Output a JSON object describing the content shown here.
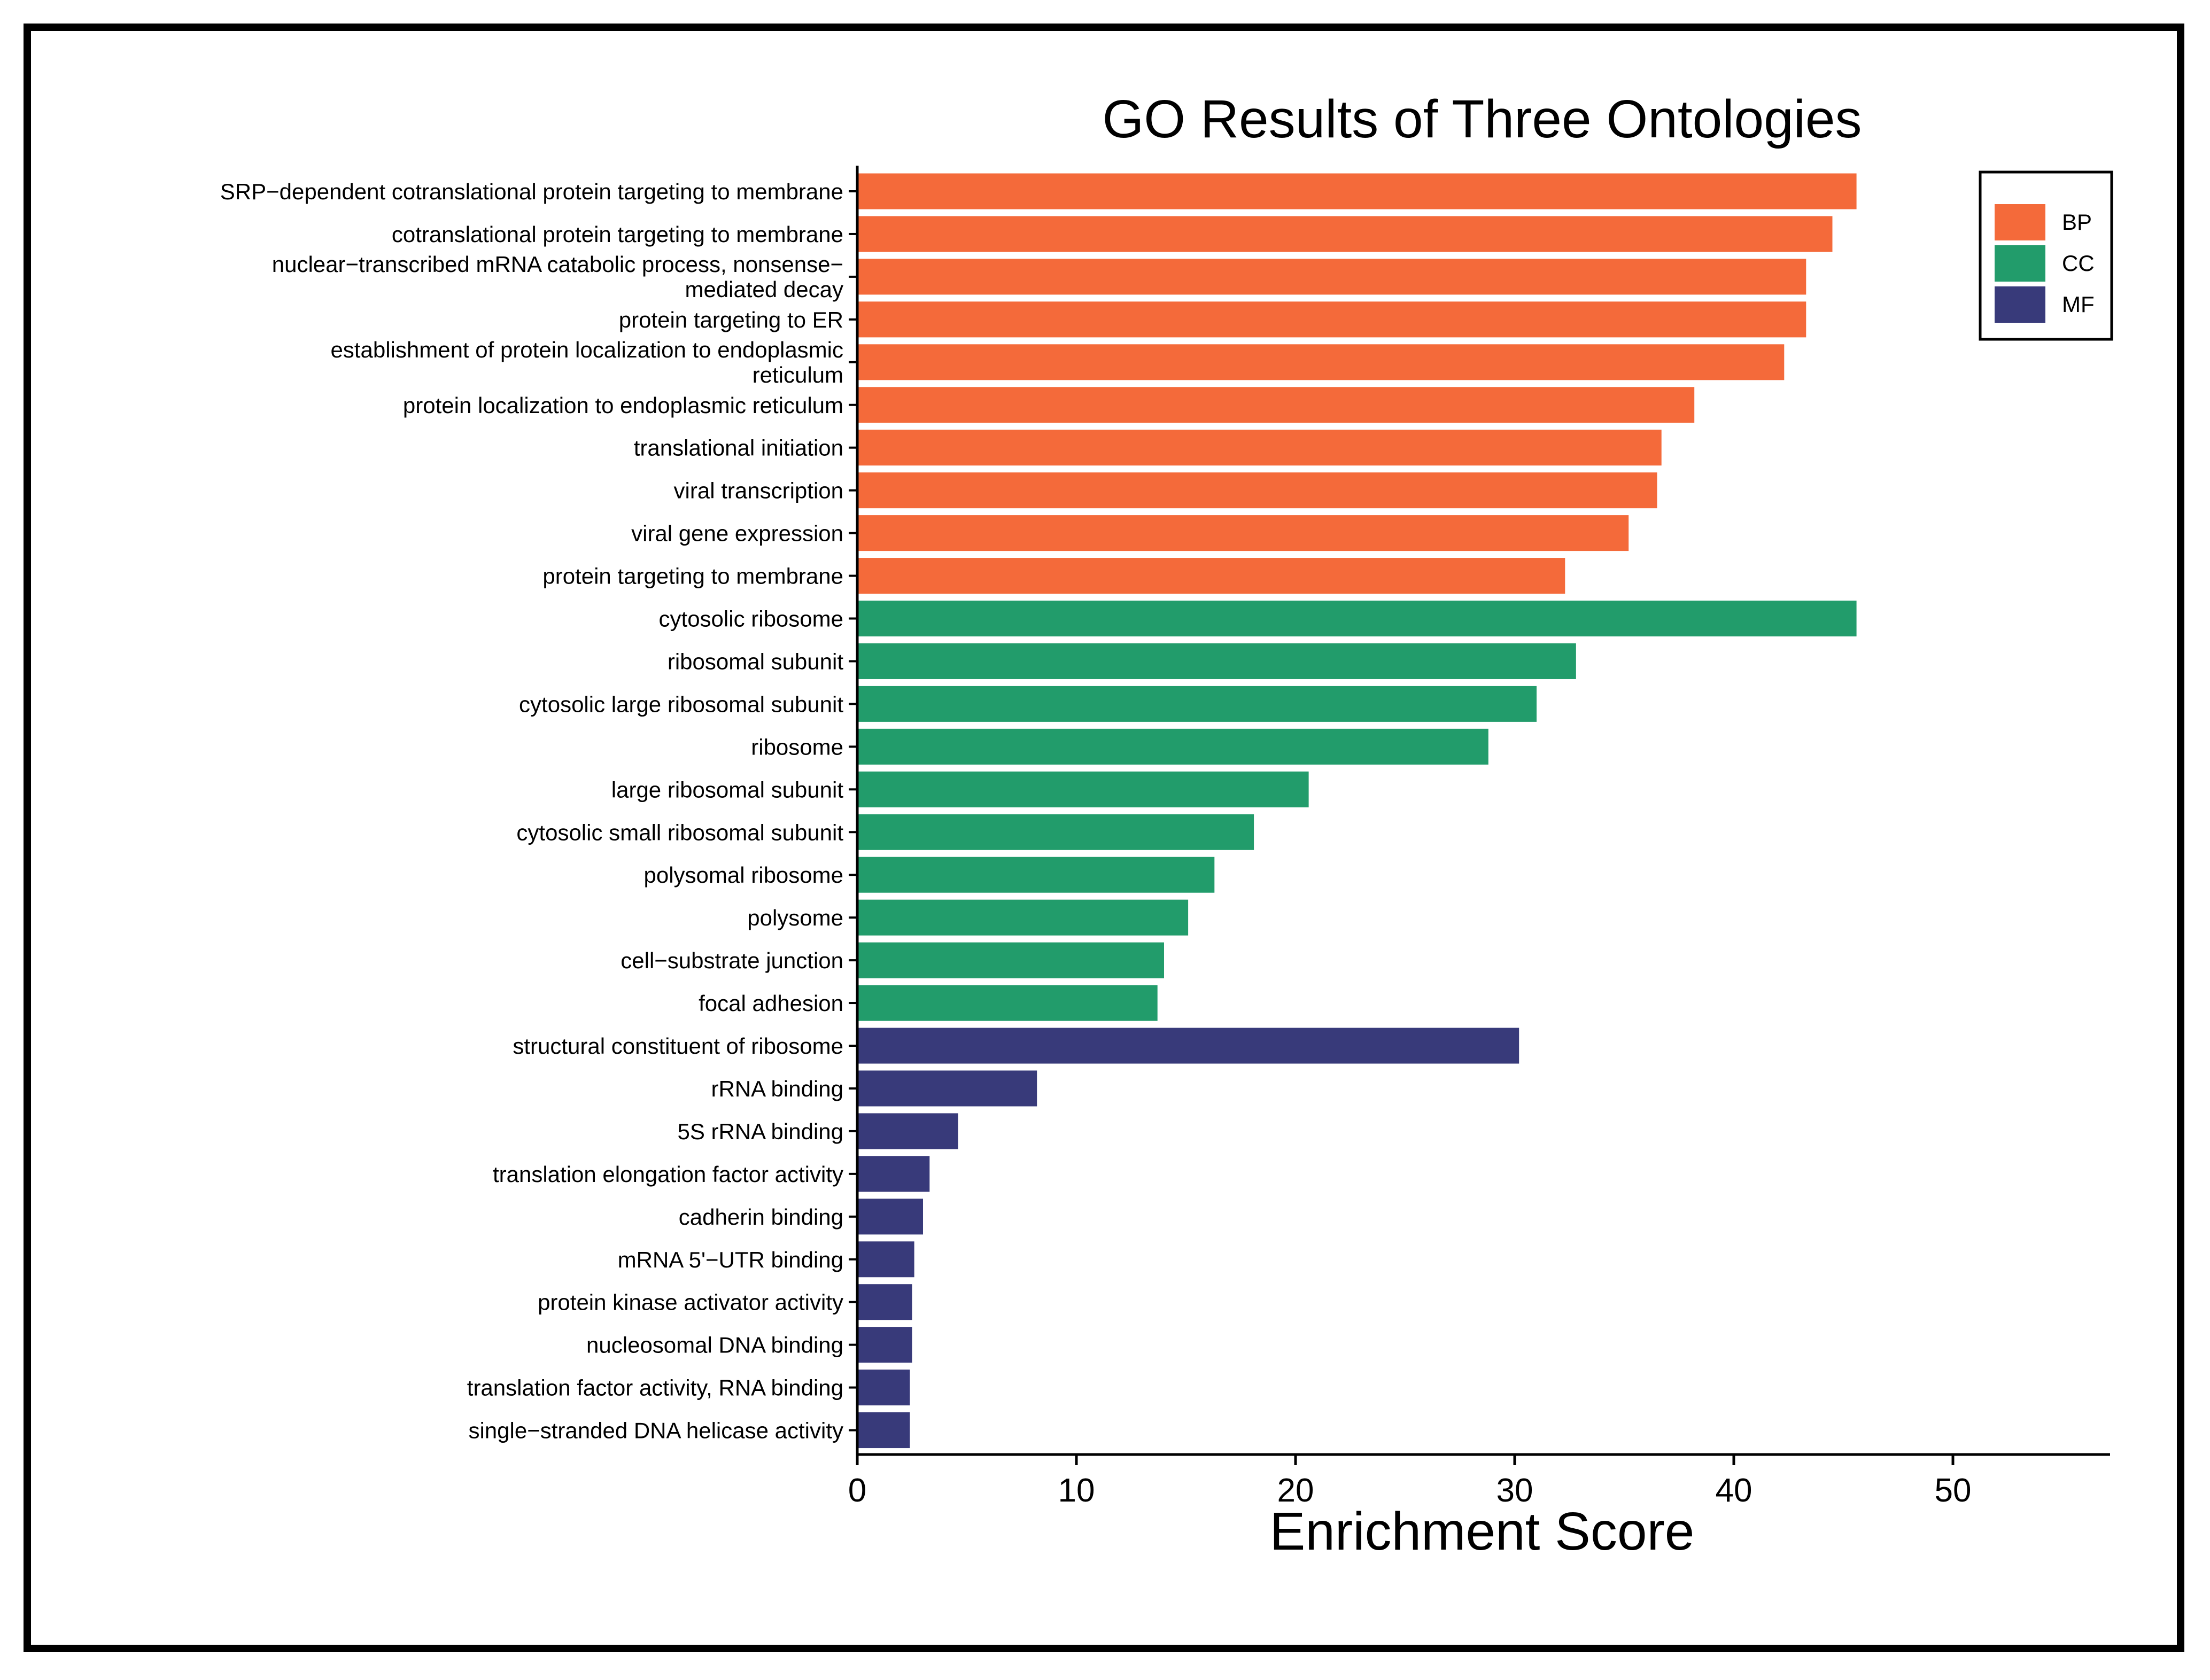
{
  "chart_data": {
    "type": "bar",
    "orientation": "horizontal",
    "title": "GO Results of Three Ontologies",
    "xlabel": "Enrichment Score",
    "ylabel": "",
    "xlim": [
      0,
      57
    ],
    "xticks": [
      0,
      10,
      20,
      30,
      40,
      50
    ],
    "grid": false,
    "legend_position": "top-right",
    "colors": {
      "BP": "#F46A3A",
      "CC": "#229C6B",
      "MF": "#383A7A"
    },
    "legend": [
      {
        "key": "BP",
        "label": "BP"
      },
      {
        "key": "CC",
        "label": "CC"
      },
      {
        "key": "MF",
        "label": "MF"
      }
    ],
    "bars": [
      {
        "label": [
          "SRP−dependent cotranslational protein targeting to membrane"
        ],
        "value": 45.6,
        "group": "BP"
      },
      {
        "label": [
          "cotranslational protein targeting to membrane"
        ],
        "value": 44.5,
        "group": "BP"
      },
      {
        "label": [
          "nuclear−transcribed mRNA catabolic process, nonsense−",
          "mediated decay"
        ],
        "value": 43.3,
        "group": "BP"
      },
      {
        "label": [
          "protein targeting to ER"
        ],
        "value": 43.3,
        "group": "BP"
      },
      {
        "label": [
          "establishment of protein localization to endoplasmic",
          "reticulum"
        ],
        "value": 42.3,
        "group": "BP"
      },
      {
        "label": [
          "protein localization to endoplasmic reticulum"
        ],
        "value": 38.2,
        "group": "BP"
      },
      {
        "label": [
          "translational initiation"
        ],
        "value": 36.7,
        "group": "BP"
      },
      {
        "label": [
          "viral transcription"
        ],
        "value": 36.5,
        "group": "BP"
      },
      {
        "label": [
          "viral gene expression"
        ],
        "value": 35.2,
        "group": "BP"
      },
      {
        "label": [
          "protein targeting to membrane"
        ],
        "value": 32.3,
        "group": "BP"
      },
      {
        "label": [
          "cytosolic ribosome"
        ],
        "value": 45.6,
        "group": "CC"
      },
      {
        "label": [
          "ribosomal subunit"
        ],
        "value": 32.8,
        "group": "CC"
      },
      {
        "label": [
          "cytosolic large ribosomal subunit"
        ],
        "value": 31.0,
        "group": "CC"
      },
      {
        "label": [
          "ribosome"
        ],
        "value": 28.8,
        "group": "CC"
      },
      {
        "label": [
          "large ribosomal subunit"
        ],
        "value": 20.6,
        "group": "CC"
      },
      {
        "label": [
          "cytosolic small ribosomal subunit"
        ],
        "value": 18.1,
        "group": "CC"
      },
      {
        "label": [
          "polysomal ribosome"
        ],
        "value": 16.3,
        "group": "CC"
      },
      {
        "label": [
          "polysome"
        ],
        "value": 15.1,
        "group": "CC"
      },
      {
        "label": [
          "cell−substrate junction"
        ],
        "value": 14.0,
        "group": "CC"
      },
      {
        "label": [
          "focal adhesion"
        ],
        "value": 13.7,
        "group": "CC"
      },
      {
        "label": [
          "structural constituent of ribosome"
        ],
        "value": 30.2,
        "group": "MF"
      },
      {
        "label": [
          "rRNA binding"
        ],
        "value": 8.2,
        "group": "MF"
      },
      {
        "label": [
          "5S rRNA binding"
        ],
        "value": 4.6,
        "group": "MF"
      },
      {
        "label": [
          "translation elongation factor activity"
        ],
        "value": 3.3,
        "group": "MF"
      },
      {
        "label": [
          "cadherin binding"
        ],
        "value": 3.0,
        "group": "MF"
      },
      {
        "label": [
          "mRNA 5'−UTR binding"
        ],
        "value": 2.6,
        "group": "MF"
      },
      {
        "label": [
          "protein kinase activator activity"
        ],
        "value": 2.5,
        "group": "MF"
      },
      {
        "label": [
          "nucleosomal DNA binding"
        ],
        "value": 2.5,
        "group": "MF"
      },
      {
        "label": [
          "translation factor activity, RNA binding"
        ],
        "value": 2.4,
        "group": "MF"
      },
      {
        "label": [
          "single−stranded DNA helicase activity"
        ],
        "value": 2.4,
        "group": "MF"
      }
    ]
  }
}
